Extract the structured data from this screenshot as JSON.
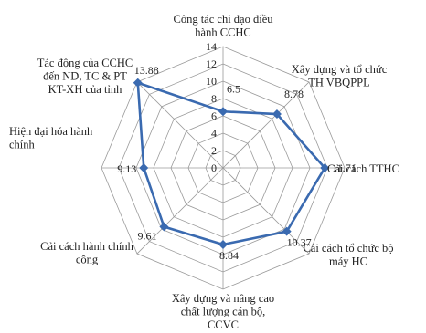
{
  "chart_data": {
    "type": "radar",
    "title": "",
    "categories": [
      [
        "Công tác chỉ đạo điều",
        "hành CCHC"
      ],
      [
        "Xây dựng và tổ chức",
        "TH VBQPPL"
      ],
      [
        "Cải cách TTHC"
      ],
      [
        "Cải cách tổ chức bộ",
        "máy HC"
      ],
      [
        "Xây dựng và nâng cao",
        "chất lượng cán bộ,",
        "CCVC"
      ],
      [
        "Cải cách hành chính",
        "công"
      ],
      [
        "Hiện đại hóa hành",
        "chính"
      ],
      [
        "Tác động của CCHC",
        "đến ND, TC & PT",
        "KT-XH của tỉnh"
      ]
    ],
    "values": [
      6.5,
      8.78,
      11.71,
      10.37,
      8.84,
      9.61,
      9.13,
      13.88
    ],
    "value_labels": [
      "6.5",
      "8.78",
      "11.71",
      "10.37",
      "8.84",
      "9.61",
      "9.13",
      "13.88"
    ],
    "rlim": [
      0,
      14
    ],
    "ticks": [
      "0",
      "2",
      "4",
      "6",
      "8",
      "10",
      "12",
      "14"
    ],
    "grid": true,
    "legend": "none",
    "color": "#3a6ab0"
  }
}
